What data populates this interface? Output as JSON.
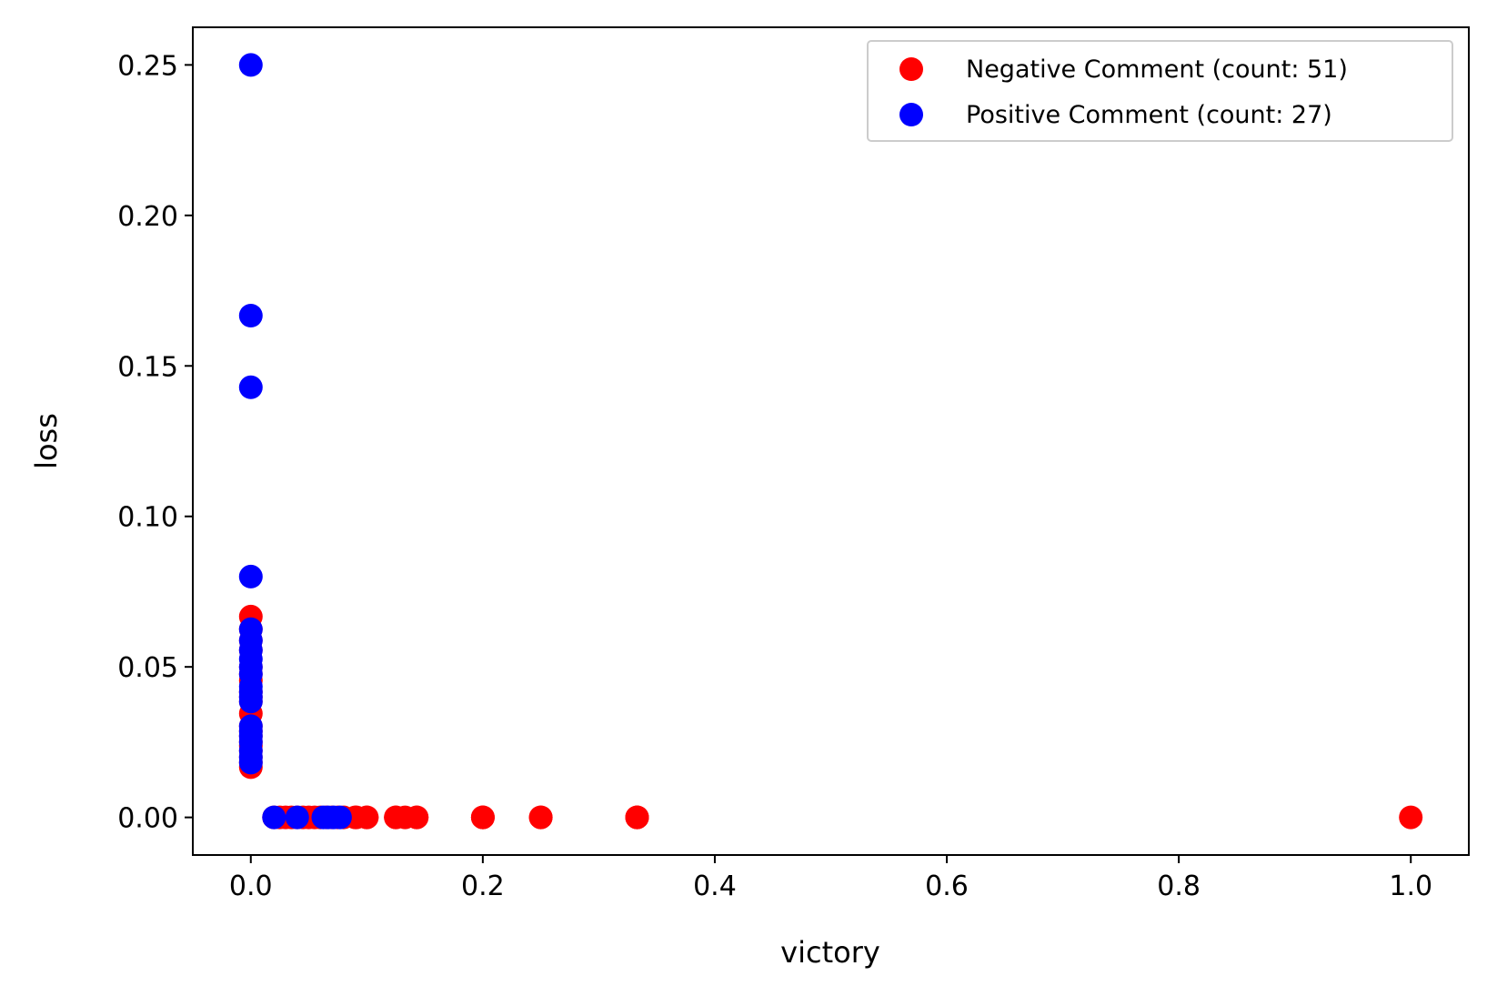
{
  "chart_data": {
    "type": "scatter",
    "title": "",
    "xlabel": "victory",
    "ylabel": "loss",
    "xlim": [
      -0.05,
      1.05
    ],
    "ylim": [
      -0.0125,
      0.2625
    ],
    "xticks": [
      0.0,
      0.2,
      0.4,
      0.6,
      0.8,
      1.0
    ],
    "xtick_labels": [
      "0.0",
      "0.2",
      "0.4",
      "0.6",
      "0.8",
      "1.0"
    ],
    "yticks": [
      0.0,
      0.05,
      0.1,
      0.15,
      0.2,
      0.25
    ],
    "ytick_labels": [
      "0.00",
      "0.05",
      "0.10",
      "0.15",
      "0.20",
      "0.25"
    ],
    "grid": false,
    "legend_position": "top-right",
    "series": [
      {
        "name": "Negative Comment (count: 51)",
        "color": "#ff0000",
        "points": [
          [
            0,
            0.0667
          ],
          [
            0,
            0.0625
          ],
          [
            0,
            0.0588
          ],
          [
            0,
            0.0556
          ],
          [
            0,
            0.05
          ],
          [
            0,
            0.0476
          ],
          [
            0,
            0.0455
          ],
          [
            0,
            0.0417
          ],
          [
            0,
            0.04
          ],
          [
            0,
            0.0385
          ],
          [
            0,
            0.0345
          ],
          [
            0,
            0.0303
          ],
          [
            0,
            0.0286
          ],
          [
            0,
            0.027
          ],
          [
            0,
            0.025
          ],
          [
            0,
            0.0238
          ],
          [
            0,
            0.0222
          ],
          [
            0,
            0.02
          ],
          [
            0,
            0.0182
          ],
          [
            0,
            0.0167
          ],
          [
            0.02,
            0
          ],
          [
            0.025,
            0
          ],
          [
            0.03,
            0
          ],
          [
            0.035,
            0
          ],
          [
            0.04,
            0
          ],
          [
            0.045,
            0
          ],
          [
            0.05,
            0
          ],
          [
            0.055,
            0
          ],
          [
            0.06,
            0
          ],
          [
            0.065,
            0
          ],
          [
            0.07,
            0
          ],
          [
            0.075,
            0
          ],
          [
            0.08,
            0
          ],
          [
            0.09,
            0
          ],
          [
            0.091,
            0
          ],
          [
            0.1,
            0
          ],
          [
            0.1,
            0
          ],
          [
            0.125,
            0
          ],
          [
            0.125,
            0
          ],
          [
            0.133,
            0
          ],
          [
            0.143,
            0
          ],
          [
            0.143,
            0
          ],
          [
            0.2,
            0
          ],
          [
            0.2,
            0
          ],
          [
            0.2,
            0
          ],
          [
            0.25,
            0
          ],
          [
            0.25,
            0
          ],
          [
            0.333,
            0
          ],
          [
            0.333,
            0
          ],
          [
            0.333,
            0
          ],
          [
            1.0,
            0
          ]
        ]
      },
      {
        "name": "Positive Comment (count: 27)",
        "color": "#0000ff",
        "points": [
          [
            0,
            0.25
          ],
          [
            0,
            0.1667
          ],
          [
            0,
            0.1429
          ],
          [
            0,
            0.08
          ],
          [
            0,
            0.0625
          ],
          [
            0,
            0.0588
          ],
          [
            0,
            0.0556
          ],
          [
            0,
            0.0526
          ],
          [
            0,
            0.05
          ],
          [
            0,
            0.0476
          ],
          [
            0,
            0.0435
          ],
          [
            0,
            0.0417
          ],
          [
            0,
            0.04
          ],
          [
            0,
            0.0385
          ],
          [
            0,
            0.0303
          ],
          [
            0,
            0.0286
          ],
          [
            0,
            0.027
          ],
          [
            0,
            0.025
          ],
          [
            0,
            0.0222
          ],
          [
            0,
            0.02
          ],
          [
            0,
            0.0182
          ],
          [
            0.02,
            0
          ],
          [
            0.04,
            0
          ],
          [
            0.0625,
            0
          ],
          [
            0.0667,
            0
          ],
          [
            0.0714,
            0
          ],
          [
            0.0769,
            0
          ]
        ]
      }
    ]
  }
}
